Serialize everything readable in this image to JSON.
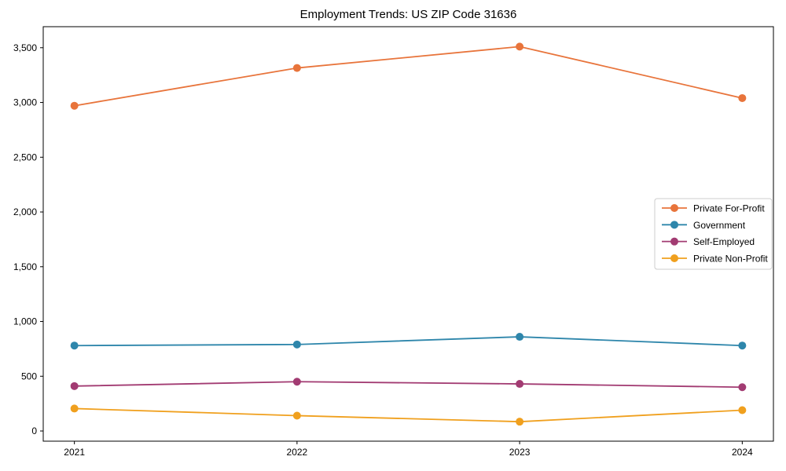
{
  "figure": {
    "background": "#ffffff"
  },
  "chart_data": {
    "type": "line",
    "title": "Employment Trends: US ZIP Code 31636",
    "xlabel": "",
    "ylabel": "",
    "x": [
      2021,
      2022,
      2023,
      2024
    ],
    "x_tick_labels": [
      "2021",
      "2022",
      "2023",
      "2024"
    ],
    "y_ticks": [
      0,
      500,
      1000,
      1500,
      2000,
      2500,
      3000,
      3500
    ],
    "y_tick_labels": [
      "0",
      "500",
      "1,000",
      "1,500",
      "2,000",
      "2,500",
      "3,000",
      "3,500"
    ],
    "xlim": [
      2020.86,
      2024.14
    ],
    "ylim": [
      -93,
      3692
    ],
    "grid": false,
    "marker": "circle",
    "axis_color": "#000000",
    "text_color": "#000000",
    "series": [
      {
        "name": "Private For-Profit",
        "color": "#E8743B",
        "values": [
          2970,
          3315,
          3510,
          3040
        ]
      },
      {
        "name": "Government",
        "color": "#2E86AB",
        "values": [
          780,
          790,
          860,
          780
        ]
      },
      {
        "name": "Self-Employed",
        "color": "#A23B72",
        "values": [
          410,
          450,
          430,
          400
        ]
      },
      {
        "name": "Private Non-Profit",
        "color": "#F0A01E",
        "values": [
          205,
          140,
          85,
          190
        ]
      }
    ],
    "legend": {
      "position": "center-right",
      "border_color": "#cccccc",
      "background": "#ffffff",
      "entries": [
        "Private For-Profit",
        "Government",
        "Self-Employed",
        "Private Non-Profit"
      ]
    }
  }
}
